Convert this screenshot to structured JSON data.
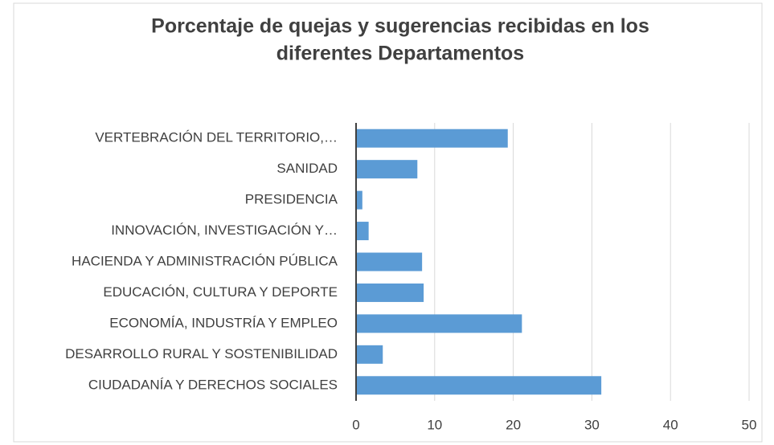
{
  "chart_data": {
    "type": "bar",
    "orientation": "horizontal",
    "title": [
      "Porcentaje de quejas y sugerencias recibidas en los",
      "diferentes Departamentos"
    ],
    "categories": [
      "VERTEBRACIÓN DEL TERRITORIO,…",
      "SANIDAD",
      "PRESIDENCIA",
      "INNOVACIÓN, INVESTIGACIÓN Y…",
      "HACIENDA Y ADMINISTRACIÓN PÚBLICA",
      "EDUCACIÓN, CULTURA Y DEPORTE",
      "ECONOMÍA, INDUSTRÍA Y EMPLEO",
      "DESARROLLO RURAL Y SOSTENIBILIDAD",
      "CIUDADANÍA Y DERECHOS SOCIALES"
    ],
    "values": [
      19.3,
      7.8,
      0.8,
      1.6,
      8.4,
      8.6,
      21.1,
      3.4,
      31.2
    ],
    "color": "#5b9bd5",
    "xlim": [
      0,
      50
    ],
    "xticks": [
      0,
      10,
      20,
      30,
      40,
      50
    ],
    "grid": true
  }
}
